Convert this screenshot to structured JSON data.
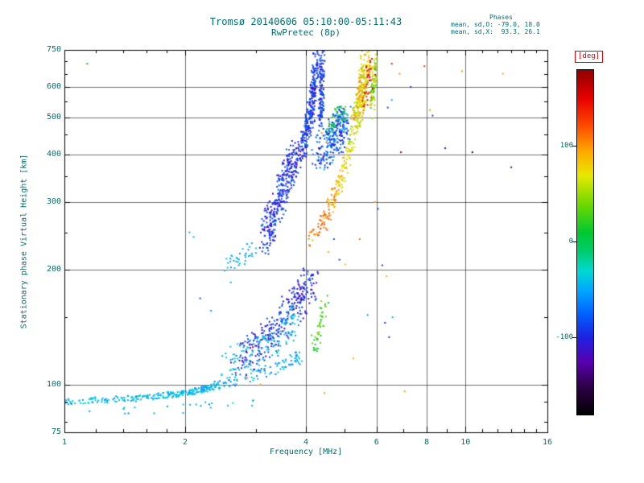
{
  "title": "Tromsø 20140606 05:10:00-05:11:43",
  "subtitle": "RwPretec (8p)",
  "stats": {
    "header": "Phases",
    "line_o": "mean, sd,O: -79.0, 18.0",
    "line_x": "mean, sd,X:  93.3, 26.1"
  },
  "colors": {
    "text_teal": "#007070",
    "axis_black": "#000000",
    "background": "#ffffff",
    "deg_label_red": "#e00000"
  },
  "chart_data": {
    "type": "scatter",
    "title": "Tromsø 20140606 05:10:00-05:11:43",
    "subtitle": "RwPretec (8p)",
    "xlabel": "Frequency [MHz]",
    "ylabel": "Stationary phase Virtual Height [km]",
    "xscale": "log",
    "yscale": "log",
    "xlim": [
      1,
      16
    ],
    "ylim": [
      75,
      750
    ],
    "xticks": [
      1,
      2,
      4,
      6,
      8,
      10,
      16
    ],
    "xgrid": [
      2,
      4,
      6,
      8,
      10
    ],
    "xminor": [
      1.2,
      1.4,
      1.6,
      1.8,
      3,
      5,
      7,
      9,
      11,
      12,
      13,
      14,
      15
    ],
    "yticks": [
      750,
      600,
      500,
      400,
      300,
      200,
      100,
      75
    ],
    "ygrid": [
      600,
      500,
      400,
      300,
      200,
      100
    ],
    "yminor": [
      80,
      90,
      150,
      250,
      350,
      450,
      550,
      650,
      700
    ],
    "grid": true,
    "legend": "none",
    "colorbar": {
      "label": "[deg]",
      "ticks": [
        100,
        0,
        -100
      ],
      "range": [
        -180,
        180
      ],
      "stops": [
        [
          -180,
          "#000000"
        ],
        [
          -150,
          "#30004a"
        ],
        [
          -125,
          "#5a00b0"
        ],
        [
          -100,
          "#2020e0"
        ],
        [
          -75,
          "#0060ff"
        ],
        [
          -50,
          "#00a8ff"
        ],
        [
          -30,
          "#00d8d0"
        ],
        [
          -10,
          "#00cc70"
        ],
        [
          10,
          "#00c830"
        ],
        [
          40,
          "#70d800"
        ],
        [
          70,
          "#e8e800"
        ],
        [
          95,
          "#ffa800"
        ],
        [
          120,
          "#ff5000"
        ],
        [
          150,
          "#e80000"
        ],
        [
          180,
          "#900000"
        ]
      ]
    },
    "clusters": [
      {
        "name": "e-region-band",
        "n": 260,
        "seed": 1,
        "path": [
          [
            1.0,
            90
          ],
          [
            1.5,
            92
          ],
          [
            2.0,
            95
          ],
          [
            2.4,
            99
          ]
        ],
        "jx": 0.01,
        "jy": 0.008,
        "phase": [
          -60,
          -25
        ]
      },
      {
        "name": "e-band-rise",
        "n": 90,
        "seed": 2,
        "path": [
          [
            2.4,
            100
          ],
          [
            3.0,
            106
          ],
          [
            3.5,
            112
          ],
          [
            3.9,
            118
          ]
        ],
        "jx": 0.012,
        "jy": 0.015,
        "phase": [
          -70,
          -30
        ]
      },
      {
        "name": "e-band-under",
        "n": 22,
        "seed": 3,
        "path": [
          [
            1.1,
            84
          ],
          [
            2.2,
            87
          ],
          [
            3.0,
            90
          ]
        ],
        "jx": 0.02,
        "jy": 0.012,
        "phase": [
          -70,
          -30
        ]
      },
      {
        "name": "valley-blue-cloud",
        "n": 280,
        "seed": 4,
        "path": [
          [
            2.7,
            115
          ],
          [
            3.1,
            128
          ],
          [
            3.5,
            148
          ],
          [
            3.9,
            168
          ],
          [
            4.15,
            185
          ]
        ],
        "jx": 0.02,
        "jy": 0.045,
        "phase": [
          -125,
          -75
        ]
      },
      {
        "name": "valley-cyan-cloud",
        "n": 140,
        "seed": 5,
        "path": [
          [
            2.5,
            112
          ],
          [
            3.0,
            122
          ],
          [
            3.5,
            135
          ],
          [
            3.8,
            150
          ]
        ],
        "jx": 0.02,
        "jy": 0.04,
        "phase": [
          -60,
          -30
        ]
      },
      {
        "name": "valley-green-streak",
        "n": 45,
        "seed": 6,
        "path": [
          [
            4.15,
            125
          ],
          [
            4.35,
            140
          ],
          [
            4.5,
            165
          ]
        ],
        "jx": 0.008,
        "jy": 0.03,
        "phase": [
          -5,
          55
        ]
      },
      {
        "name": "f-foot-cyan",
        "n": 35,
        "seed": 7,
        "path": [
          [
            2.55,
            205
          ],
          [
            2.75,
            213
          ],
          [
            3.0,
            228
          ]
        ],
        "jx": 0.015,
        "jy": 0.02,
        "phase": [
          -60,
          -35
        ]
      },
      {
        "name": "f-rise-streaks",
        "n": 320,
        "seed": 8,
        "path": [
          [
            3.15,
            240
          ],
          [
            3.3,
            270
          ],
          [
            3.45,
            310
          ],
          [
            3.6,
            350
          ],
          [
            3.75,
            395
          ]
        ],
        "jx": 0.012,
        "jy": 0.05,
        "phase": [
          -120,
          -70
        ]
      },
      {
        "name": "f-steep-asymptote",
        "n": 300,
        "seed": 9,
        "path": [
          [
            3.8,
            380
          ],
          [
            3.95,
            430
          ],
          [
            4.05,
            480
          ],
          [
            4.15,
            540
          ],
          [
            4.2,
            620
          ],
          [
            4.25,
            720
          ]
        ],
        "jx": 0.008,
        "jy": 0.035,
        "phase": [
          -115,
          -65
        ]
      },
      {
        "name": "f-second-streak",
        "n": 130,
        "seed": 10,
        "path": [
          [
            4.35,
            480
          ],
          [
            4.38,
            580
          ],
          [
            4.4,
            715
          ]
        ],
        "jx": 0.006,
        "jy": 0.03,
        "phase": [
          -110,
          -70
        ]
      },
      {
        "name": "f-blob",
        "n": 260,
        "seed": 11,
        "path": [
          [
            4.3,
            400
          ],
          [
            4.6,
            430
          ],
          [
            4.85,
            460
          ],
          [
            5.0,
            490
          ]
        ],
        "jx": 0.018,
        "jy": 0.045,
        "phase": [
          -110,
          -45
        ]
      },
      {
        "name": "blob-green-edge",
        "n": 40,
        "seed": 12,
        "path": [
          [
            4.55,
            470
          ],
          [
            4.8,
            500
          ],
          [
            5.0,
            520
          ]
        ],
        "jx": 0.01,
        "jy": 0.025,
        "phase": [
          -10,
          40
        ]
      },
      {
        "name": "x-mode-arc",
        "n": 160,
        "seed": 13,
        "path": [
          [
            4.35,
            255
          ],
          [
            4.55,
            285
          ],
          [
            4.75,
            320
          ],
          [
            4.95,
            360
          ],
          [
            5.1,
            400
          ],
          [
            5.25,
            450
          ]
        ],
        "jx": 0.008,
        "jy": 0.025,
        "phase": [
          115,
          55
        ],
        "grad": true,
        "noise": 20
      },
      {
        "name": "x-mode-top",
        "n": 260,
        "seed": 14,
        "path": [
          [
            5.3,
            470
          ],
          [
            5.45,
            540
          ],
          [
            5.55,
            620
          ],
          [
            5.65,
            715
          ]
        ],
        "jx": 0.012,
        "jy": 0.032,
        "phase": [
          40,
          110
        ]
      },
      {
        "name": "x-right-streak",
        "n": 90,
        "seed": 15,
        "path": [
          [
            5.85,
            520
          ],
          [
            5.9,
            600
          ],
          [
            5.95,
            700
          ]
        ],
        "jx": 0.006,
        "jy": 0.028,
        "phase": [
          20,
          90
        ]
      },
      {
        "name": "x-red-specks",
        "n": 35,
        "seed": 16,
        "path": [
          [
            5.6,
            560
          ],
          [
            5.75,
            620
          ],
          [
            5.85,
            690
          ]
        ],
        "jx": 0.01,
        "jy": 0.038,
        "phase": [
          120,
          170
        ]
      },
      {
        "name": "x-foot-orange",
        "n": 18,
        "seed": 17,
        "path": [
          [
            4.1,
            238
          ],
          [
            4.3,
            258
          ]
        ],
        "jx": 0.01,
        "jy": 0.02,
        "phase": [
          85,
          125
        ]
      }
    ],
    "outliers": [
      [
        1.14,
        690,
        10
      ],
      [
        6.55,
        690,
        140
      ],
      [
        6.85,
        650,
        100
      ],
      [
        7.3,
        600,
        -95
      ],
      [
        6.4,
        530,
        -85
      ],
      [
        6.55,
        555,
        -45
      ],
      [
        7.9,
        680,
        130
      ],
      [
        8.15,
        522,
        95
      ],
      [
        8.28,
        505,
        -90
      ],
      [
        9.8,
        660,
        100
      ],
      [
        12.4,
        650,
        95
      ],
      [
        10.4,
        405,
        -165
      ],
      [
        6.9,
        405,
        165
      ],
      [
        13.0,
        370,
        -120
      ],
      [
        8.9,
        415,
        -110
      ],
      [
        5.95,
        300,
        100
      ],
      [
        6.05,
        288,
        -85
      ],
      [
        6.2,
        205,
        -90
      ],
      [
        6.35,
        192,
        85
      ],
      [
        5.7,
        152,
        -55
      ],
      [
        6.3,
        145,
        -92
      ],
      [
        6.45,
        133,
        -100
      ],
      [
        6.58,
        150,
        -42
      ],
      [
        7.05,
        96,
        95
      ],
      [
        4.45,
        95,
        95
      ],
      [
        3.08,
        100,
        92
      ],
      [
        2.86,
        104,
        100
      ],
      [
        5.25,
        117,
        92
      ],
      [
        4.85,
        212,
        -92
      ],
      [
        5.02,
        206,
        85
      ],
      [
        2.32,
        156,
        -50
      ],
      [
        2.18,
        168,
        -88
      ],
      [
        2.6,
        185,
        -45
      ],
      [
        5.45,
        240,
        110
      ],
      [
        4.7,
        240,
        -80
      ],
      [
        4.55,
        222,
        95
      ],
      [
        2.05,
        250,
        -45
      ],
      [
        2.1,
        243,
        -50
      ],
      [
        4.38,
        455,
        100
      ],
      [
        4.5,
        430,
        115
      ]
    ]
  }
}
